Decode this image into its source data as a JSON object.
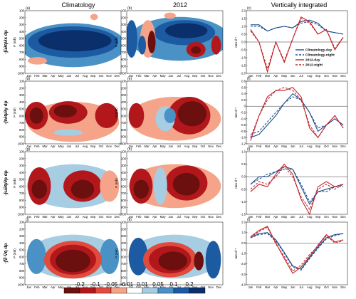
{
  "headers": {
    "col1": "Climatology",
    "col2": "2012",
    "col3": "Vertically integrated"
  },
  "months": [
    "Jan",
    "Feb",
    "Mar",
    "Apr",
    "May",
    "Jun",
    "Jul",
    "Aug",
    "Sep",
    "Oct",
    "Nov",
    "Dec"
  ],
  "pressure_ticks": [
    100,
    200,
    300,
    400,
    500,
    600,
    700,
    800,
    900,
    1000
  ],
  "p_axis_label": "P (mb)",
  "flux_unit_label": "mm d⁻¹",
  "row_labels": [
    "-∫ū∂q̄/∂x dp",
    "-∫v̄∂q̄/∂y dp",
    "-∫ω̄∂q̄/∂p dp",
    "-∫∇·V̄q̄ dp"
  ],
  "panel_letters": [
    "(a)",
    "(b)",
    "(c)",
    "(d)",
    "(e)",
    "(f)",
    "(g)",
    "(h)",
    "(i)",
    "(j)",
    "(k)",
    "(l)"
  ],
  "colorbar": {
    "ticks": [
      "-0.2",
      "-0.1",
      "-0.05",
      "-0.01",
      "0.01",
      "0.05",
      "0.1",
      "0.2"
    ],
    "colors": [
      "#6b0f0f",
      "#b2171b",
      "#e04b3d",
      "#f5a48a",
      "#ffffff",
      "#a7cde3",
      "#4a92c6",
      "#1c5aa1",
      "#0a2f6b"
    ]
  },
  "legend": [
    {
      "name": "Climatology-day",
      "color": "#1f4e8c",
      "dash": ""
    },
    {
      "name": "Climatology-night",
      "color": "#1f4e8c",
      "dash": "3,2"
    },
    {
      "name": "2012-day",
      "color": "#c0262c",
      "dash": ""
    },
    {
      "name": "2012-night",
      "color": "#c0262c",
      "dash": "3,2"
    }
  ],
  "chart_data": [
    {
      "type": "heatmap",
      "panel": "(a)",
      "x": "month",
      "y": "pressure (mb)"
    },
    {
      "type": "heatmap",
      "panel": "(b)",
      "x": "month",
      "y": "pressure (mb)"
    },
    {
      "type": "line",
      "panel": "(c)",
      "categories": [
        "Jan",
        "Feb",
        "Mar",
        "Apr",
        "May",
        "Jun",
        "Jul",
        "Aug",
        "Sep",
        "Oct",
        "Nov",
        "Dec"
      ],
      "ylim": [
        -2,
        2
      ],
      "yticks": [
        "2.0",
        "1.5",
        "1.0",
        "0.5",
        "0.0",
        "-0.5",
        "-1.0",
        "-1.5",
        "-2.0"
      ],
      "series": [
        {
          "name": "Climatology-day",
          "values": [
            1.1,
            1.1,
            0.7,
            0.9,
            1.0,
            0.9,
            1.3,
            1.4,
            1.2,
            0.7,
            0.6,
            0.5
          ]
        },
        {
          "name": "Climatology-night",
          "values": [
            1.0,
            1.0,
            0.7,
            0.9,
            1.0,
            0.9,
            1.2,
            1.3,
            1.1,
            0.7,
            0.6,
            0.5
          ]
        },
        {
          "name": "2012-day",
          "values": [
            0.8,
            0.0,
            -1.9,
            0.0,
            -1.3,
            0.2,
            1.6,
            1.3,
            0.5,
            0.8,
            -0.5,
            0.3
          ]
        },
        {
          "name": "2012-night",
          "values": [
            0.7,
            0.0,
            -1.7,
            0.0,
            -1.2,
            0.2,
            1.5,
            1.2,
            0.5,
            0.8,
            -0.4,
            0.3
          ]
        }
      ]
    },
    {
      "type": "heatmap",
      "panel": "(d)",
      "x": "month",
      "y": "pressure (mb)"
    },
    {
      "type": "heatmap",
      "panel": "(e)",
      "x": "month",
      "y": "pressure (mb)"
    },
    {
      "type": "line",
      "panel": "(f)",
      "categories": [
        "Jan",
        "Feb",
        "Mar",
        "Apr",
        "May",
        "Jun",
        "Jul",
        "Aug",
        "Sep",
        "Oct",
        "Nov",
        "Dec"
      ],
      "ylim": [
        -1.2,
        0.8
      ],
      "yticks": [
        "0.8",
        "0.6",
        "0.4",
        "0.2",
        "0",
        "-0.2",
        "-0.4",
        "-0.6",
        "-0.8",
        "-1.0",
        "-1.2"
      ],
      "series": [
        {
          "name": "Climatology-day",
          "values": [
            -1.0,
            -0.9,
            -0.6,
            -0.3,
            0.1,
            0.4,
            0.2,
            -0.2,
            -0.8,
            -0.6,
            -0.4,
            -0.6
          ]
        },
        {
          "name": "Climatology-night",
          "values": [
            -0.9,
            -0.8,
            -0.5,
            -0.2,
            0.1,
            0.3,
            0.2,
            -0.2,
            -0.7,
            -0.6,
            -0.4,
            -0.6
          ]
        },
        {
          "name": "2012-day",
          "values": [
            -1.1,
            -0.3,
            0.3,
            0.5,
            0.5,
            0.6,
            0.3,
            -0.7,
            -1.0,
            -0.6,
            -0.3,
            -0.7
          ]
        },
        {
          "name": "2012-night",
          "values": [
            -1.0,
            -0.3,
            0.2,
            0.5,
            0.6,
            0.5,
            0.2,
            -0.6,
            -1.0,
            -0.6,
            -0.3,
            -0.7
          ]
        }
      ]
    },
    {
      "type": "heatmap",
      "panel": "(g)",
      "x": "month",
      "y": "pressure (mb)"
    },
    {
      "type": "heatmap",
      "panel": "(h)",
      "x": "month",
      "y": "pressure (mb)"
    },
    {
      "type": "line",
      "panel": "(i)",
      "categories": [
        "Jan",
        "Feb",
        "Mar",
        "Apr",
        "May",
        "Jun",
        "Jul",
        "Aug",
        "Sep",
        "Oct",
        "Nov",
        "Dec"
      ],
      "ylim": [
        -1.5,
        1.0
      ],
      "yticks": [
        "1.0",
        "0.5",
        "0.0",
        "-0.5",
        "-1.0",
        "-1.5"
      ],
      "series": [
        {
          "name": "Climatology-day",
          "values": [
            -0.3,
            0.0,
            0.0,
            0.2,
            0.4,
            0.3,
            -0.4,
            -1.1,
            -0.6,
            -0.5,
            -0.4,
            -0.3
          ]
        },
        {
          "name": "Climatology-night",
          "values": [
            -0.3,
            -0.1,
            0.1,
            0.2,
            0.3,
            0.3,
            -0.3,
            -1.0,
            -0.6,
            -0.6,
            -0.4,
            -0.4
          ]
        },
        {
          "name": "2012-day",
          "values": [
            -0.6,
            -0.3,
            -0.4,
            0.1,
            0.5,
            0.1,
            -0.9,
            -1.5,
            -0.4,
            -0.2,
            -0.4,
            -0.3
          ]
        },
        {
          "name": "2012-night",
          "values": [
            -0.5,
            -0.2,
            -0.3,
            0.0,
            0.4,
            0.0,
            -0.8,
            -1.3,
            -0.5,
            -0.3,
            -0.5,
            -0.3
          ]
        }
      ]
    },
    {
      "type": "heatmap",
      "panel": "(j)",
      "x": "month",
      "y": "pressure (mb)"
    },
    {
      "type": "heatmap",
      "panel": "(k)",
      "x": "month",
      "y": "pressure (mb)"
    },
    {
      "type": "line",
      "panel": "(l)",
      "categories": [
        "Jan",
        "Feb",
        "Mar",
        "Apr",
        "May",
        "Jun",
        "Jul",
        "Aug",
        "Sep",
        "Oct",
        "Nov",
        "Dec"
      ],
      "ylim": [
        -4,
        2
      ],
      "yticks": [
        "2.0",
        "1.0",
        "0.0",
        "-1.0",
        "-2.0",
        "-3.0",
        "-4.0"
      ],
      "series": [
        {
          "name": "Climatology-day",
          "values": [
            0.5,
            0.9,
            1.0,
            0.3,
            -0.9,
            -2.2,
            -2.5,
            -1.4,
            -0.4,
            0.5,
            0.8,
            0.9
          ]
        },
        {
          "name": "Climatology-night",
          "values": [
            0.5,
            0.8,
            0.9,
            0.2,
            -1.0,
            -2.3,
            -2.6,
            -1.5,
            -0.5,
            0.4,
            0.7,
            0.9
          ]
        },
        {
          "name": "2012-day",
          "values": [
            0.6,
            1.2,
            1.6,
            0.0,
            -1.5,
            -2.9,
            -2.3,
            -1.3,
            -0.2,
            0.8,
            0.1,
            0.3
          ]
        },
        {
          "name": "2012-night",
          "values": [
            0.5,
            1.1,
            1.5,
            -0.1,
            -1.3,
            -2.7,
            -2.1,
            -1.1,
            -0.3,
            0.7,
            0.0,
            0.2
          ]
        }
      ]
    }
  ]
}
